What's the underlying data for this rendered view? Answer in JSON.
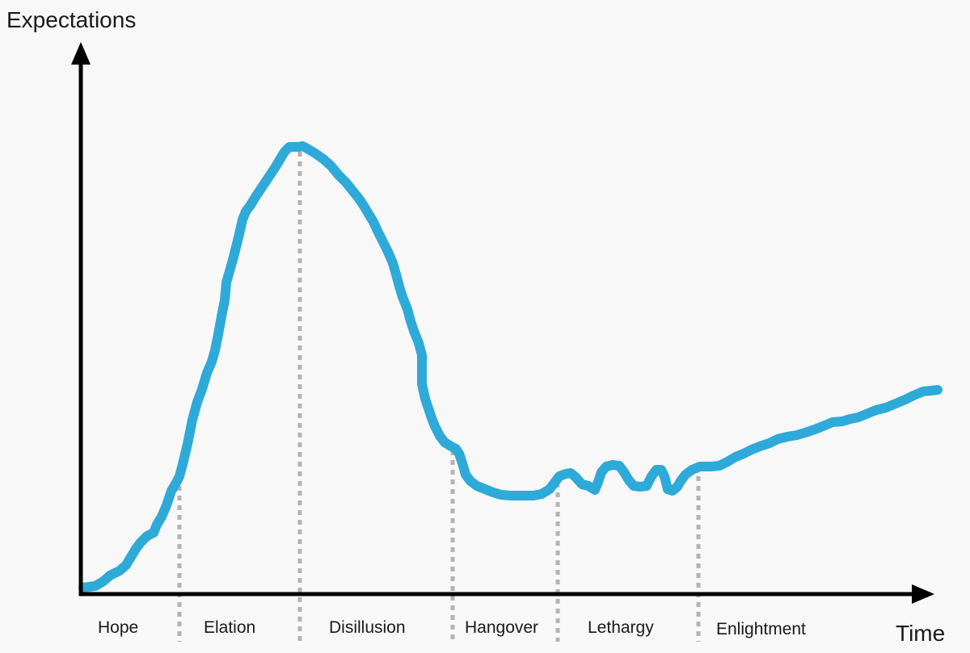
{
  "diagram": {
    "y_axis_label": "Expectations",
    "x_axis_label": "Time",
    "colors": {
      "curve": "#2eaad9",
      "axes": "#000000",
      "divider": "#b3b3b3",
      "background": "#f8f8f8"
    },
    "phases": [
      {
        "label": "Hope"
      },
      {
        "label": "Elation"
      },
      {
        "label": "Disillusion"
      },
      {
        "label": "Hangover"
      },
      {
        "label": "Lethargy"
      },
      {
        "label": "Enlightment"
      }
    ]
  }
}
